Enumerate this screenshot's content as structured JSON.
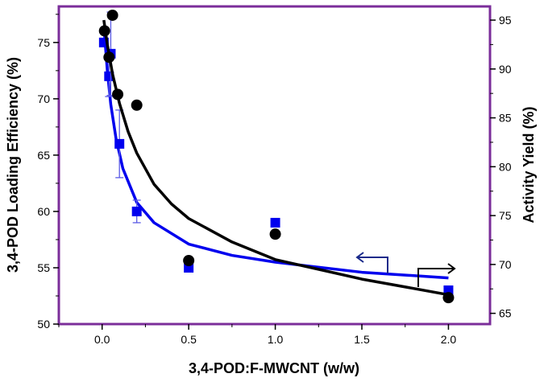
{
  "chart_data": {
    "type": "scatter",
    "title": "",
    "xlabel": "3,4-POD:F-MWCNT (w/w)",
    "ylabel": "3,4-POD Loading Efficiency (%)",
    "y2label": "Activity Yield (%)",
    "xlim": [
      -0.25,
      2.24
    ],
    "ylim": [
      50,
      78.2
    ],
    "y2lim": [
      63.9,
      96.4
    ],
    "xticks": [
      "0.0",
      "0.5",
      "1.0",
      "1.5",
      "2.0"
    ],
    "xtick_values": [
      0,
      0.5,
      1.0,
      1.5,
      2.0
    ],
    "yticks": [
      "50",
      "55",
      "60",
      "65",
      "70",
      "75"
    ],
    "ytick_values": [
      50,
      55,
      60,
      65,
      70,
      75
    ],
    "y2ticks": [
      "65",
      "70",
      "75",
      "80",
      "85",
      "90",
      "95"
    ],
    "y2tick_values": [
      65,
      70,
      75,
      80,
      85,
      90,
      95
    ],
    "grid": false,
    "colors": {
      "loading": "#0000ee",
      "activity": "#000000",
      "frame": "#7b2d9a"
    },
    "series": [
      {
        "name": "Loading Efficiency",
        "axis": "left",
        "marker": "square",
        "x": [
          0.01,
          0.04,
          0.05,
          0.1,
          0.2,
          0.5,
          1.0,
          2.0
        ],
        "y": [
          75,
          72,
          74,
          66,
          60,
          55,
          59,
          53
        ],
        "err": [
          0,
          1.8,
          3.7,
          3,
          1,
          0.3,
          0.3,
          0.3
        ],
        "fit": {
          "x": [
            0.01,
            0.03,
            0.05,
            0.08,
            0.12,
            0.2,
            0.3,
            0.5,
            0.75,
            1.0,
            1.5,
            2.0
          ],
          "y": [
            76.5,
            72.5,
            69.5,
            66.5,
            63.8,
            60.8,
            59.0,
            57.1,
            56.1,
            55.5,
            54.6,
            54.1
          ]
        }
      },
      {
        "name": "Activity Yield",
        "axis": "right",
        "marker": "circle",
        "x": [
          0.014,
          0.04,
          0.06,
          0.09,
          0.2,
          0.5,
          1.0,
          2.0
        ],
        "y": [
          93.9,
          91.2,
          95.5,
          87.4,
          86.3,
          70.4,
          73.1,
          66.6
        ],
        "fit": {
          "x": [
            0.01,
            0.03,
            0.06,
            0.1,
            0.15,
            0.2,
            0.3,
            0.4,
            0.5,
            0.75,
            1.0,
            1.5,
            2.0
          ],
          "y": [
            95.0,
            92.5,
            89.5,
            86.5,
            83.6,
            81.4,
            78.2,
            76.2,
            74.7,
            72.3,
            70.5,
            68.5,
            66.9
          ]
        }
      }
    ]
  }
}
